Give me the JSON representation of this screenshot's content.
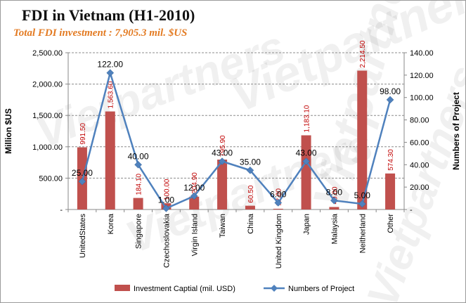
{
  "watermark": "Vietpartners",
  "chart_data": {
    "type": "bar",
    "title": "FDI in Vietnam (H1-2010)",
    "subtitle": "Total FDI investment : 7,905.3 mil. $US",
    "categories": [
      "UnitedStates",
      "Korea",
      "Singapore",
      "Czechoslovakia",
      "Virgin Island",
      "Taiwan",
      "China",
      "United Kingdom",
      "Japan",
      "Malaysia",
      "Neitherland",
      "Other"
    ],
    "series": [
      {
        "name": "Investment Captial  (mil. USD)",
        "type": "bar",
        "axis": "left",
        "color": "#c0504d",
        "values": [
          991.5,
          1563.6,
          184.1,
          100.0,
          204.9,
          795.9,
          60.5,
          12.0,
          1183.1,
          40.0,
          2214.5,
          574.3
        ],
        "labels": [
          "991.50",
          "1,563.60",
          "184.10",
          "100.00",
          "204.90",
          "795.90",
          "60.50",
          "12.00",
          "1,183.10",
          "40.00",
          "2,214.50",
          "574.30"
        ]
      },
      {
        "name": "Numbers of Project",
        "type": "line",
        "axis": "right",
        "color": "#4f81bd",
        "values": [
          25,
          122,
          40,
          1,
          12,
          43,
          35,
          6,
          43,
          8,
          5,
          98
        ],
        "labels": [
          "25.00",
          "122.00",
          "40.00",
          "1.00",
          "12.00",
          "43.00",
          "35.00",
          "6.00",
          "43.00",
          "8.00",
          "5.00",
          "98.00"
        ]
      }
    ],
    "ylabel_left": "Million $US",
    "ylabel_right": "Numbers of Project",
    "ylim_left": [
      0,
      2500
    ],
    "ylim_right": [
      0,
      140
    ],
    "yticks_left": [
      "-",
      "500.00",
      "1,000.00",
      "1,500.00",
      "2,000.00",
      "2,500.00"
    ],
    "yticks_right": [
      "-",
      "20.00",
      "40.00",
      "60.00",
      "80.00",
      "100.00",
      "120.00",
      "140.00"
    ],
    "grid": "horizontal dashed",
    "legend_position": "bottom"
  }
}
